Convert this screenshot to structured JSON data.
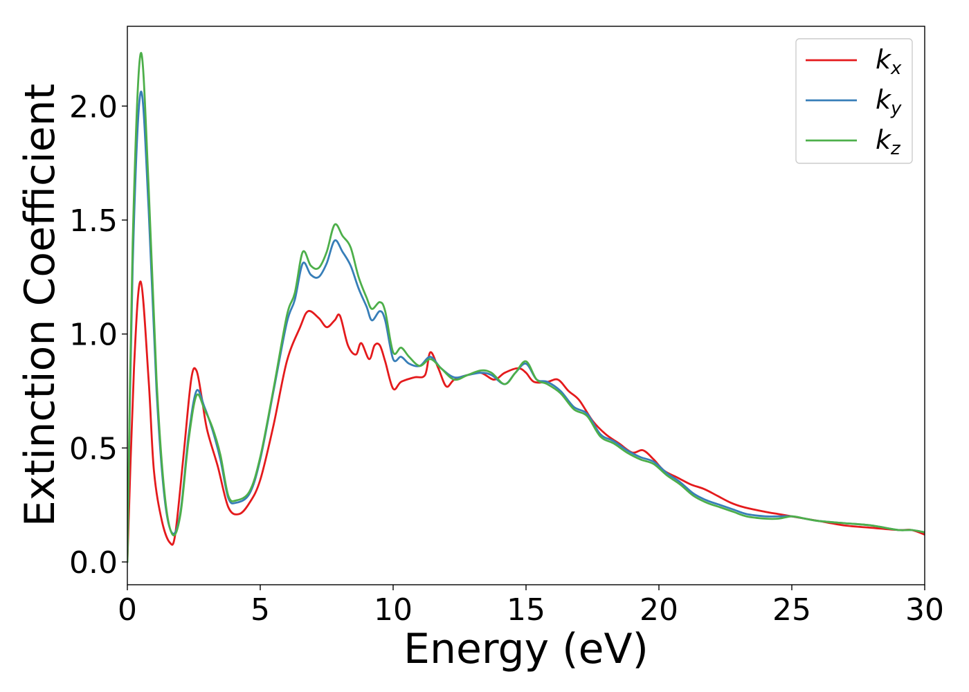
{
  "chart_data": {
    "type": "line",
    "title": "",
    "xlabel": "Energy (eV)",
    "ylabel": "Extinction Coefficient",
    "xlim": [
      0,
      30
    ],
    "ylim": [
      -0.1,
      2.35
    ],
    "xticks": [
      0,
      5,
      10,
      15,
      20,
      25,
      30
    ],
    "xtick_labels": [
      "0",
      "5",
      "10",
      "15",
      "20",
      "25",
      "30"
    ],
    "yticks": [
      0.0,
      0.5,
      1.0,
      1.5,
      2.0
    ],
    "ytick_labels": [
      "0.0",
      "0.5",
      "1.0",
      "1.5",
      "2.0"
    ],
    "grid": false,
    "legend_position": "top-right",
    "series": [
      {
        "name": "k_x",
        "legend_base": "k",
        "legend_sub": "x",
        "color": "#e41a1c",
        "x": [
          0,
          0.25,
          0.5,
          0.8,
          1.0,
          1.3,
          1.6,
          1.8,
          2.1,
          2.4,
          2.6,
          2.8,
          3.0,
          3.4,
          3.8,
          4.2,
          4.6,
          5.0,
          5.5,
          6.0,
          6.5,
          6.8,
          7.2,
          7.5,
          7.8,
          8.0,
          8.3,
          8.6,
          8.8,
          9.1,
          9.3,
          9.5,
          9.7,
          10.0,
          10.3,
          10.8,
          11.2,
          11.4,
          11.7,
          12.0,
          12.3,
          12.8,
          13.3,
          13.8,
          14.2,
          14.7,
          15.0,
          15.3,
          15.8,
          16.2,
          16.6,
          17.0,
          17.5,
          18.0,
          18.5,
          19.0,
          19.4,
          19.8,
          20.2,
          20.7,
          21.2,
          21.7,
          22.2,
          22.7,
          23.2,
          24.0,
          24.5,
          25.0,
          25.5,
          26.0,
          27.0,
          28.0,
          29.0,
          29.5,
          30.0
        ],
        "y": [
          0.0,
          0.85,
          1.23,
          0.8,
          0.4,
          0.18,
          0.085,
          0.12,
          0.45,
          0.8,
          0.84,
          0.72,
          0.58,
          0.42,
          0.24,
          0.21,
          0.26,
          0.36,
          0.6,
          0.88,
          1.03,
          1.1,
          1.07,
          1.03,
          1.06,
          1.08,
          0.95,
          0.91,
          0.96,
          0.89,
          0.95,
          0.95,
          0.88,
          0.76,
          0.79,
          0.81,
          0.82,
          0.92,
          0.85,
          0.77,
          0.8,
          0.82,
          0.83,
          0.8,
          0.83,
          0.85,
          0.83,
          0.79,
          0.79,
          0.8,
          0.75,
          0.71,
          0.62,
          0.56,
          0.52,
          0.48,
          0.49,
          0.45,
          0.4,
          0.37,
          0.34,
          0.32,
          0.29,
          0.26,
          0.24,
          0.22,
          0.21,
          0.2,
          0.19,
          0.18,
          0.16,
          0.15,
          0.14,
          0.14,
          0.12
        ]
      },
      {
        "name": "k_y",
        "legend_base": "k",
        "legend_sub": "y",
        "color": "#377eb8",
        "x": [
          0,
          0.2,
          0.5,
          0.8,
          1.1,
          1.4,
          1.7,
          2.0,
          2.3,
          2.6,
          2.9,
          3.2,
          3.5,
          3.8,
          4.1,
          4.6,
          5.0,
          5.5,
          6.0,
          6.3,
          6.6,
          6.9,
          7.2,
          7.5,
          7.8,
          8.1,
          8.4,
          8.7,
          9.0,
          9.2,
          9.5,
          9.7,
          10.0,
          10.3,
          10.6,
          11.0,
          11.4,
          11.8,
          12.3,
          12.8,
          13.3,
          13.7,
          14.2,
          14.6,
          15.0,
          15.4,
          15.8,
          16.3,
          16.8,
          17.3,
          17.8,
          18.3,
          18.8,
          19.3,
          19.8,
          20.3,
          20.8,
          21.3,
          21.8,
          22.3,
          22.8,
          23.3,
          24.0,
          24.5,
          25.0,
          25.5,
          26.0,
          27.0,
          28.0,
          29.0,
          29.5,
          30.0
        ],
        "y": [
          0.0,
          1.3,
          2.06,
          1.55,
          0.75,
          0.28,
          0.125,
          0.22,
          0.55,
          0.75,
          0.68,
          0.58,
          0.45,
          0.28,
          0.26,
          0.3,
          0.45,
          0.75,
          1.05,
          1.15,
          1.31,
          1.26,
          1.25,
          1.31,
          1.41,
          1.36,
          1.3,
          1.2,
          1.12,
          1.06,
          1.1,
          1.06,
          0.89,
          0.9,
          0.87,
          0.86,
          0.9,
          0.85,
          0.81,
          0.82,
          0.83,
          0.82,
          0.78,
          0.83,
          0.87,
          0.8,
          0.79,
          0.75,
          0.68,
          0.65,
          0.56,
          0.53,
          0.49,
          0.46,
          0.44,
          0.39,
          0.35,
          0.3,
          0.27,
          0.25,
          0.23,
          0.21,
          0.2,
          0.2,
          0.2,
          0.19,
          0.18,
          0.17,
          0.16,
          0.14,
          0.14,
          0.13
        ]
      },
      {
        "name": "k_z",
        "legend_base": "k",
        "legend_sub": "z",
        "color": "#4daf4a",
        "x": [
          0,
          0.2,
          0.5,
          0.8,
          1.1,
          1.4,
          1.7,
          2.0,
          2.3,
          2.6,
          2.9,
          3.2,
          3.5,
          3.8,
          4.1,
          4.6,
          5.0,
          5.5,
          6.0,
          6.3,
          6.6,
          6.9,
          7.2,
          7.5,
          7.8,
          8.1,
          8.4,
          8.7,
          9.0,
          9.2,
          9.5,
          9.7,
          10.0,
          10.3,
          10.6,
          11.0,
          11.4,
          11.8,
          12.3,
          12.8,
          13.3,
          13.7,
          14.2,
          14.6,
          15.0,
          15.4,
          15.8,
          16.3,
          16.8,
          17.3,
          17.8,
          18.3,
          18.8,
          19.3,
          19.8,
          20.3,
          20.8,
          21.3,
          21.8,
          22.3,
          22.8,
          23.3,
          24.0,
          24.5,
          25.0,
          25.5,
          26.0,
          27.0,
          28.0,
          29.0,
          29.5,
          30.0
        ],
        "y": [
          0.0,
          1.4,
          2.23,
          1.65,
          0.8,
          0.3,
          0.12,
          0.21,
          0.53,
          0.73,
          0.67,
          0.59,
          0.47,
          0.29,
          0.27,
          0.31,
          0.46,
          0.76,
          1.08,
          1.18,
          1.36,
          1.3,
          1.29,
          1.36,
          1.48,
          1.43,
          1.38,
          1.25,
          1.16,
          1.11,
          1.14,
          1.1,
          0.92,
          0.94,
          0.9,
          0.86,
          0.89,
          0.85,
          0.8,
          0.82,
          0.84,
          0.83,
          0.78,
          0.83,
          0.88,
          0.8,
          0.78,
          0.74,
          0.67,
          0.64,
          0.55,
          0.52,
          0.48,
          0.45,
          0.43,
          0.38,
          0.34,
          0.29,
          0.26,
          0.24,
          0.22,
          0.2,
          0.19,
          0.19,
          0.2,
          0.19,
          0.18,
          0.17,
          0.16,
          0.14,
          0.14,
          0.13
        ]
      }
    ]
  }
}
